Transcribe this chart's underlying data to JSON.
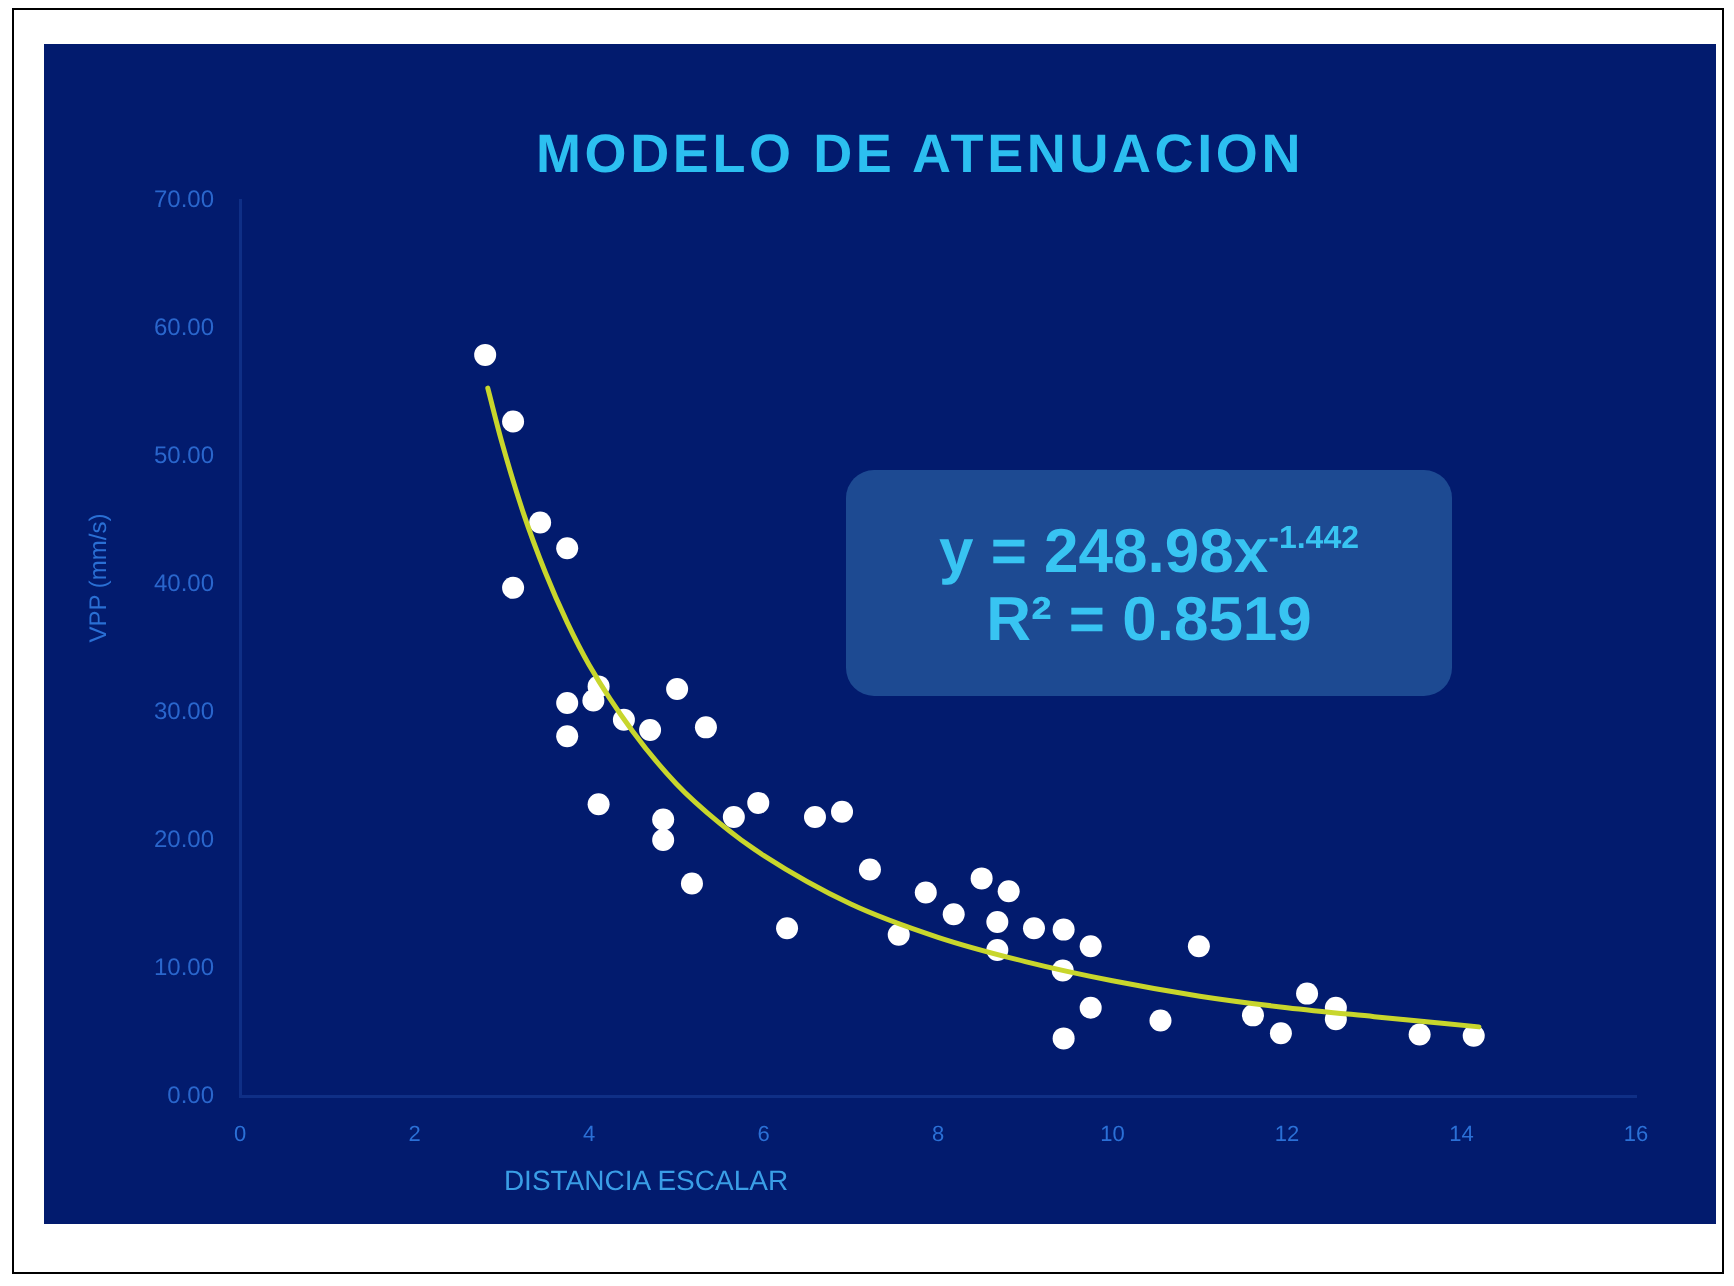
{
  "chart_data": {
    "type": "scatter",
    "title": "MODELO DE ATENUACION",
    "xlabel": "DISTANCIA ESCALAR",
    "ylabel": "VPP (mm/s)",
    "annotations": [
      "y = 248.98x$^{-1.442}$",
      "R² = 0.8519"
    ],
    "series": [
      {
        "type": "scatter",
        "color": "#ffffff",
        "marker": "circle",
        "x": [
          2.81,
          3.13,
          3.13,
          3.44,
          3.75,
          3.75,
          3.75,
          4.05,
          4.11,
          4.11,
          4.4,
          4.7,
          4.85,
          4.85,
          5.01,
          5.18,
          5.34,
          5.66,
          5.94,
          6.27,
          6.59,
          6.9,
          7.22,
          7.55,
          7.86,
          8.18,
          8.5,
          8.68,
          8.68,
          8.81,
          9.1,
          9.43,
          9.44,
          9.44,
          9.75,
          9.75,
          10.55,
          10.99,
          11.61,
          11.93,
          12.23,
          12.56,
          12.56,
          13.52,
          14.14
        ],
        "values": [
          57.9,
          52.7,
          39.7,
          44.8,
          42.8,
          30.7,
          28.1,
          30.9,
          32.0,
          22.8,
          29.4,
          28.6,
          21.6,
          20.0,
          31.8,
          16.6,
          28.8,
          21.8,
          22.9,
          13.1,
          21.8,
          22.2,
          17.7,
          12.6,
          15.9,
          14.2,
          17.0,
          13.6,
          11.4,
          16.0,
          13.1,
          9.8,
          13.0,
          4.5,
          11.7,
          6.9,
          5.9,
          11.7,
          6.3,
          4.9,
          8.0,
          6.9,
          6.0,
          4.8,
          4.7
        ]
      },
      {
        "type": "line",
        "color": "#c8d62c",
        "x": [
          2.84,
          3.0,
          3.25,
          3.5,
          3.75,
          4.0,
          4.5,
          5.0,
          5.5,
          6.0,
          7.0,
          8.0,
          9.0,
          10.0,
          11.0,
          12.0,
          13.0,
          14.2
        ],
        "values": [
          55.3,
          51.1,
          45.5,
          40.9,
          37.0,
          33.7,
          28.5,
          24.4,
          21.3,
          18.8,
          15.0,
          12.4,
          10.5,
          9.0,
          7.8,
          6.9,
          6.2,
          5.4
        ]
      }
    ],
    "xlim": [
      0,
      16
    ],
    "xticks": [
      0,
      2,
      4,
      6,
      8,
      10,
      12,
      14,
      16
    ],
    "ylim": [
      0,
      70
    ],
    "yticks": [
      {
        "value": 0,
        "label": "0.00"
      },
      {
        "value": 10,
        "label": "10.00"
      },
      {
        "value": 20,
        "label": "20.00"
      },
      {
        "value": 30,
        "label": "30.00"
      },
      {
        "value": 40,
        "label": "40.00"
      },
      {
        "value": 50,
        "label": "50.00"
      },
      {
        "value": 60,
        "label": "60.00"
      },
      {
        "value": 70,
        "label": "70.00"
      }
    ]
  }
}
